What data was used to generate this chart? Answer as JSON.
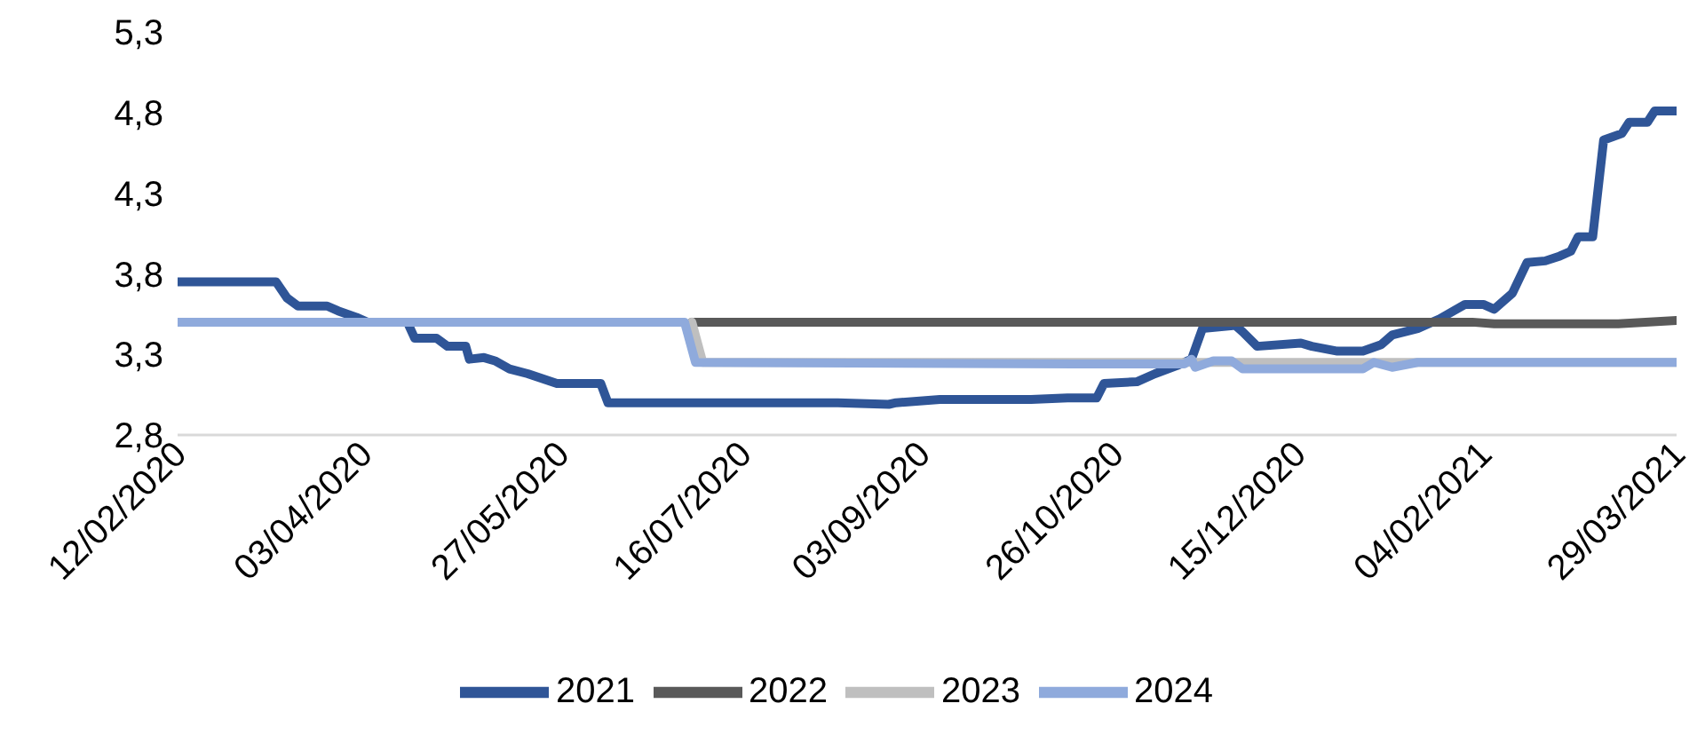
{
  "chart_data": {
    "type": "line",
    "legend": "bottom",
    "line_style": "solid",
    "marker": "none",
    "xlim": [
      "2020-02-12",
      "2021-03-29"
    ],
    "xticks": [
      {
        "value": "2020-02-12",
        "label": "12/02/2020"
      },
      {
        "value": "2020-04-03",
        "label": "03/04/2020"
      },
      {
        "value": "2020-05-27",
        "label": "27/05/2020"
      },
      {
        "value": "2020-07-16",
        "label": "16/07/2020"
      },
      {
        "value": "2020-09-03",
        "label": "03/09/2020"
      },
      {
        "value": "2020-10-26",
        "label": "26/10/2020"
      },
      {
        "value": "2020-12-15",
        "label": "15/12/2020"
      },
      {
        "value": "2021-02-04",
        "label": "04/02/2021"
      },
      {
        "value": "2021-03-29",
        "label": "29/03/2021"
      }
    ],
    "ylim": [
      2.8,
      5.3
    ],
    "yticks": [
      {
        "value": 2.8,
        "label": "2,8"
      },
      {
        "value": 3.3,
        "label": "3,3"
      },
      {
        "value": 3.8,
        "label": "3,8"
      },
      {
        "value": 4.3,
        "label": "4,3"
      },
      {
        "value": 4.8,
        "label": "4,8"
      },
      {
        "value": 5.3,
        "label": "5,3"
      }
    ],
    "series": [
      {
        "name": "2021",
        "color": "#2f5597",
        "x": [
          "2020-02-12",
          "2020-03-10",
          "2020-03-13",
          "2020-03-16",
          "2020-03-24",
          "2020-03-27",
          "2020-04-01",
          "2020-04-04",
          "2020-04-15",
          "2020-04-17",
          "2020-04-23",
          "2020-04-26",
          "2020-05-01",
          "2020-05-02",
          "2020-05-06",
          "2020-05-09",
          "2020-05-13",
          "2020-05-18",
          "2020-05-26",
          "2020-06-07",
          "2020-06-09",
          "2020-08-11",
          "2020-08-25",
          "2020-08-27",
          "2020-09-08",
          "2020-10-03",
          "2020-10-13",
          "2020-10-21",
          "2020-10-23",
          "2020-11-01",
          "2020-11-06",
          "2020-11-12",
          "2020-11-16",
          "2020-11-19",
          "2020-11-28",
          "2020-11-30",
          "2020-12-04",
          "2020-12-16",
          "2020-12-19",
          "2020-12-26",
          "2021-01-02",
          "2021-01-07",
          "2021-01-10",
          "2021-01-17",
          "2021-01-23",
          "2021-01-30",
          "2021-02-04",
          "2021-02-07",
          "2021-02-12",
          "2021-02-16",
          "2021-02-21",
          "2021-02-25",
          "2021-02-28",
          "2021-03-02",
          "2021-03-06",
          "2021-03-09",
          "2021-03-14",
          "2021-03-16",
          "2021-03-21",
          "2021-03-23",
          "2021-03-29"
        ],
        "values": [
          3.75,
          3.75,
          3.65,
          3.6,
          3.6,
          3.57,
          3.53,
          3.5,
          3.5,
          3.4,
          3.4,
          3.35,
          3.35,
          3.27,
          3.28,
          3.26,
          3.21,
          3.18,
          3.12,
          3.12,
          3.0,
          3.0,
          2.99,
          3.0,
          3.02,
          3.02,
          3.03,
          3.03,
          3.12,
          3.13,
          3.18,
          3.23,
          3.27,
          3.46,
          3.48,
          3.44,
          3.35,
          3.37,
          3.35,
          3.32,
          3.32,
          3.36,
          3.42,
          3.46,
          3.52,
          3.61,
          3.61,
          3.58,
          3.68,
          3.87,
          3.88,
          3.91,
          3.94,
          4.03,
          4.03,
          4.63,
          4.67,
          4.74,
          4.74,
          4.81,
          4.81
        ]
      },
      {
        "name": "2022",
        "color": "#595959",
        "x": [
          "2020-07-02",
          "2021-02-01",
          "2021-02-07",
          "2021-03-13",
          "2021-03-29"
        ],
        "values": [
          3.5,
          3.5,
          3.49,
          3.49,
          3.51
        ]
      },
      {
        "name": "2023",
        "color": "#bfbfbf",
        "x": [
          "2020-07-02",
          "2020-07-05",
          "2021-03-29"
        ],
        "values": [
          3.5,
          3.25,
          3.25
        ]
      },
      {
        "name": "2024",
        "color": "#8faadc",
        "x": [
          "2020-02-12",
          "2020-06-30",
          "2020-07-03",
          "2020-10-15",
          "2020-11-14",
          "2020-11-16",
          "2020-11-17",
          "2020-11-22",
          "2020-11-27",
          "2020-11-30",
          "2021-01-02",
          "2021-01-05",
          "2021-01-10",
          "2021-01-17",
          "2021-03-29"
        ],
        "values": [
          3.5,
          3.5,
          3.25,
          3.24,
          3.24,
          3.27,
          3.22,
          3.26,
          3.26,
          3.21,
          3.21,
          3.25,
          3.22,
          3.25,
          3.25
        ]
      }
    ]
  }
}
